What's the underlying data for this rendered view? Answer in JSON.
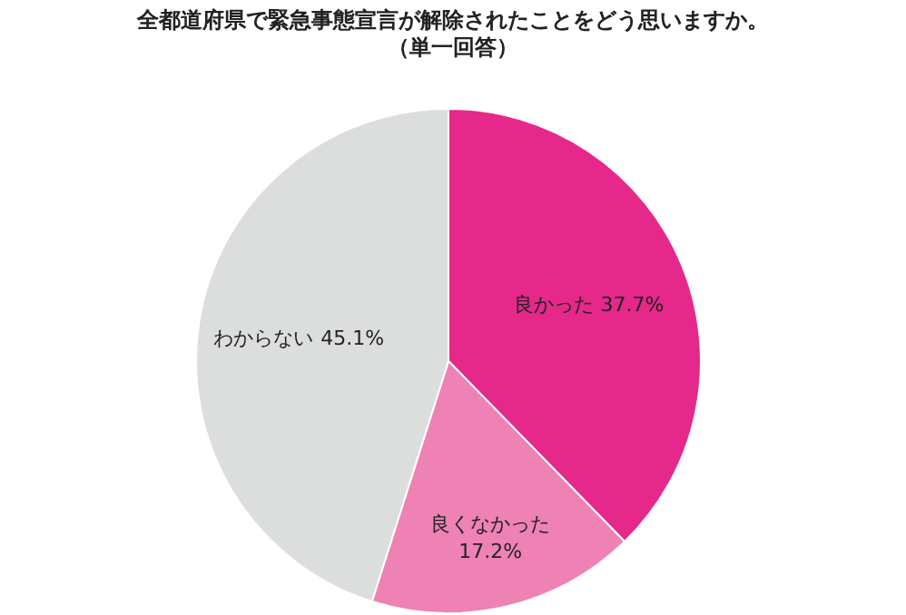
{
  "chart_data": {
    "type": "pie",
    "title": "全都道府県で緊急事態宣言が解除されたことをどう思いますか。",
    "subtitle": "（単一回答）",
    "categories": [
      "良かった",
      "良くなかった",
      "わからない"
    ],
    "values": [
      37.7,
      17.2,
      45.1
    ],
    "value_labels": [
      "37.7%",
      "17.2%",
      "45.1%"
    ],
    "colors": [
      "#e5288a",
      "#ee82b4",
      "#dcdddd"
    ]
  }
}
